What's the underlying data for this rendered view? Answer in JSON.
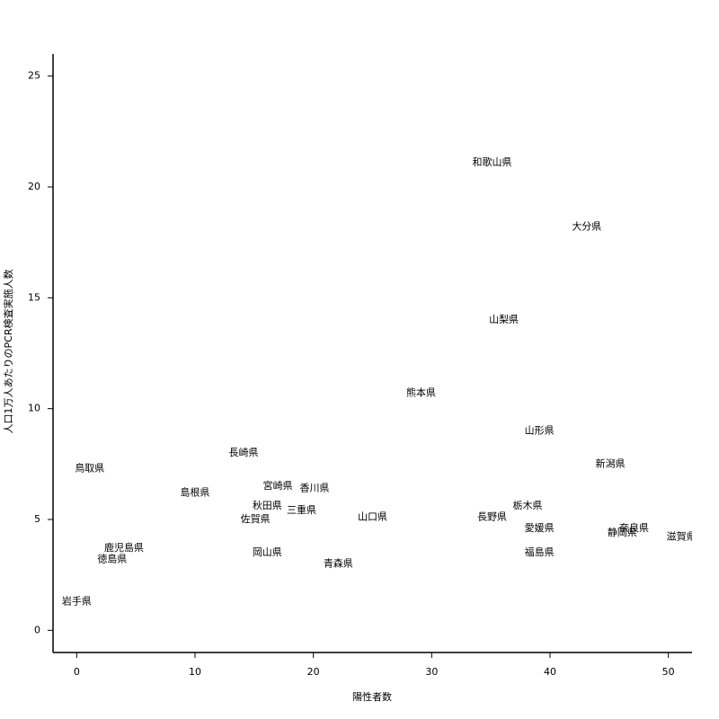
{
  "chart_data": {
    "type": "scatter",
    "xlabel": "陽性者数",
    "ylabel": "人口1万人あたりのPCR検査実施人数",
    "labels": [
      "和歌山県",
      "大分県",
      "山梨県",
      "熊本県",
      "山形県",
      "新潟県",
      "鳥取県",
      "長崎県",
      "宮崎県",
      "香川県",
      "島根県",
      "秋田県",
      "三重県",
      "佐賀県",
      "山口県",
      "長野県",
      "栃木県",
      "愛媛県",
      "奈良県",
      "静岡県",
      "滋賀県",
      "福島県",
      "岡山県",
      "青森県",
      "鹿児島県",
      "徳島県",
      "岩手県"
    ],
    "x": [
      35.1,
      43.1,
      36.1,
      29.1,
      39.1,
      45.1,
      1.1,
      14.1,
      17.0,
      20.1,
      10.0,
      16.1,
      19.0,
      15.1,
      25.0,
      35.1,
      38.1,
      39.1,
      47.1,
      46.1,
      51.1,
      39.1,
      16.1,
      22.1,
      4.0,
      3.0,
      0
    ],
    "values": [
      21.1,
      18.2,
      14.0,
      10.7,
      9.0,
      7.5,
      7.3,
      8.0,
      6.5,
      6.4,
      6.2,
      5.6,
      5.4,
      5.0,
      5.1,
      5.1,
      5.6,
      4.6,
      4.6,
      4.4,
      4.2,
      3.5,
      3.5,
      3.0,
      3.7,
      3.2,
      1.3
    ],
    "color": "#000000",
    "xlim": [
      -2,
      52
    ],
    "ylim": [
      -1,
      26
    ],
    "xticks": [
      0,
      10,
      20,
      30,
      40,
      50
    ],
    "yticks": [
      0,
      5,
      10,
      15,
      20,
      25
    ]
  }
}
